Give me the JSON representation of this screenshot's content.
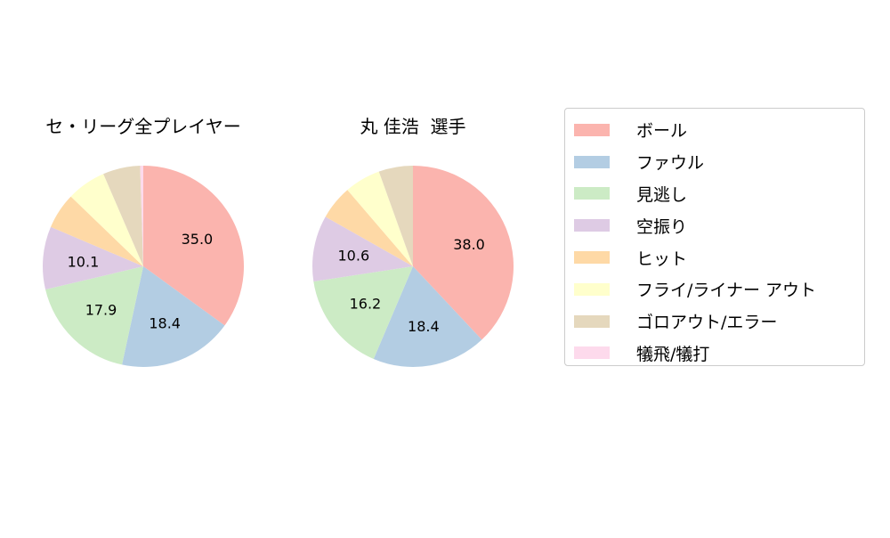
{
  "chart_data": [
    {
      "type": "pie",
      "title": "セ・リーグ全プレイヤー",
      "categories": [
        "ボール",
        "ファウル",
        "見逃し",
        "空振り",
        "ヒット",
        "フライ/ライナー アウト",
        "ゴロアウト/エラー",
        "犠飛/犠打"
      ],
      "values": [
        35.0,
        18.4,
        17.9,
        10.1,
        5.8,
        6.3,
        6.0,
        0.5
      ],
      "labels": [
        "35.0",
        "18.4",
        "17.9",
        "10.1",
        "",
        "",
        "",
        ""
      ]
    },
    {
      "type": "pie",
      "title": "丸 佳浩  選手",
      "categories": [
        "ボール",
        "ファウル",
        "見逃し",
        "空振り",
        "ヒット",
        "フライ/ライナー アウト",
        "ゴロアウト/エラー",
        "犠飛/犠打"
      ],
      "values": [
        38.0,
        18.4,
        16.2,
        10.6,
        5.5,
        5.8,
        5.5,
        0
      ],
      "labels": [
        "38.0",
        "18.4",
        "16.2",
        "10.6",
        "",
        "",
        "",
        ""
      ]
    }
  ],
  "colors": [
    "#fbb4ae",
    "#b3cde3",
    "#ccebc5",
    "#decbe4",
    "#fed9a6",
    "#ffffcc",
    "#e5d8bd",
    "#fddaec"
  ],
  "legend": {
    "placement": "right",
    "items": [
      "ボール",
      "ファウル",
      "見逃し",
      "空振り",
      "ヒット",
      "フライ/ライナー アウト",
      "ゴロアウト/エラー",
      "犠飛/犠打"
    ]
  }
}
